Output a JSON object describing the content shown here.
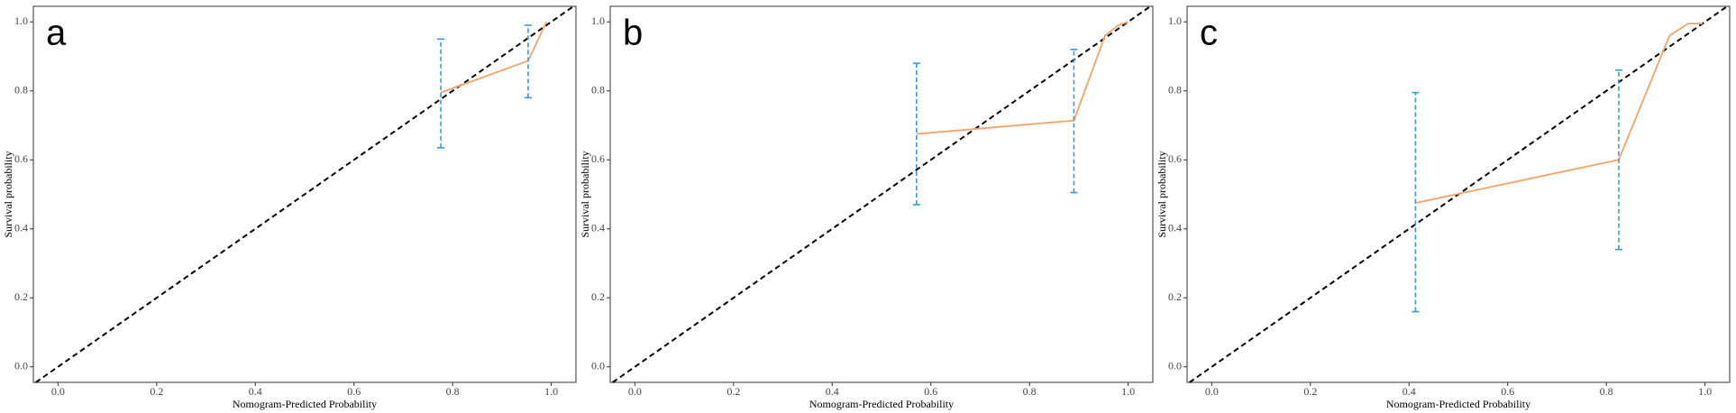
{
  "chart_data": [
    {
      "type": "line",
      "panel": "a",
      "xlabel": "Nomogram-Predicted Probability",
      "ylabel": "Survival probability",
      "xlim": [
        -0.05,
        1.05
      ],
      "ylim": [
        -0.045,
        1.045
      ],
      "xticks": [
        {
          "value": 0,
          "label": "0.0"
        },
        {
          "value": 0.2,
          "label": "0.2"
        },
        {
          "value": 0.4,
          "label": "0.4"
        },
        {
          "value": 0.6,
          "label": "0.6"
        },
        {
          "value": 0.8,
          "label": "0.8"
        },
        {
          "value": 1,
          "label": "1.0"
        }
      ],
      "yticks": [
        {
          "value": 0,
          "label": "0.0"
        },
        {
          "value": 0.2,
          "label": "0.2"
        },
        {
          "value": 0.4,
          "label": "0.4"
        },
        {
          "value": 0.6,
          "label": "0.6"
        },
        {
          "value": 0.8,
          "label": "0.8"
        },
        {
          "value": 1,
          "label": "1.0"
        }
      ],
      "x": [
        0.776,
        0.953,
        0.99
      ],
      "values": [
        0.795,
        0.887,
        1.0
      ],
      "color": "#f4a46a",
      "error_bars": {
        "x": [
          0.776,
          0.953
        ],
        "lower": [
          0.635,
          0.78
        ],
        "upper": [
          0.95,
          0.99
        ],
        "color": "#3a9ad9"
      }
    },
    {
      "type": "line",
      "panel": "b",
      "xlabel": "Nomogram-Predicted Probability",
      "ylabel": "Survival probability",
      "xlim": [
        -0.05,
        1.05
      ],
      "ylim": [
        -0.045,
        1.045
      ],
      "xticks": [
        {
          "value": 0,
          "label": "0.0"
        },
        {
          "value": 0.2,
          "label": "0.2"
        },
        {
          "value": 0.4,
          "label": "0.4"
        },
        {
          "value": 0.6,
          "label": "0.6"
        },
        {
          "value": 0.8,
          "label": "0.8"
        },
        {
          "value": 1,
          "label": "1.0"
        }
      ],
      "yticks": [
        {
          "value": 0,
          "label": "0.0"
        },
        {
          "value": 0.2,
          "label": "0.2"
        },
        {
          "value": 0.4,
          "label": "0.4"
        },
        {
          "value": 0.6,
          "label": "0.6"
        },
        {
          "value": 0.8,
          "label": "0.8"
        },
        {
          "value": 1,
          "label": "1.0"
        }
      ],
      "x": [
        0.571,
        0.89,
        0.953,
        0.98,
        1.0
      ],
      "values": [
        0.675,
        0.714,
        0.96,
        0.99,
        1.0
      ],
      "color": "#f4a46a",
      "error_bars": {
        "x": [
          0.571,
          0.89
        ],
        "lower": [
          0.47,
          0.505
        ],
        "upper": [
          0.88,
          0.92
        ],
        "color": "#3a9ad9"
      }
    },
    {
      "type": "line",
      "panel": "c",
      "xlabel": "Nomogram-Predicted Probability",
      "ylabel": "Survival probability",
      "xlim": [
        -0.05,
        1.05
      ],
      "ylim": [
        -0.045,
        1.045
      ],
      "xticks": [
        {
          "value": 0,
          "label": "0.0"
        },
        {
          "value": 0.2,
          "label": "0.2"
        },
        {
          "value": 0.4,
          "label": "0.4"
        },
        {
          "value": 0.6,
          "label": "0.6"
        },
        {
          "value": 0.8,
          "label": "0.8"
        },
        {
          "value": 1,
          "label": "1.0"
        }
      ],
      "yticks": [
        {
          "value": 0,
          "label": "0.0"
        },
        {
          "value": 0.2,
          "label": "0.2"
        },
        {
          "value": 0.4,
          "label": "0.4"
        },
        {
          "value": 0.6,
          "label": "0.6"
        },
        {
          "value": 0.8,
          "label": "0.8"
        },
        {
          "value": 1,
          "label": "1.0"
        }
      ],
      "x": [
        0.413,
        0.825,
        0.928,
        0.966,
        0.995
      ],
      "values": [
        0.475,
        0.6,
        0.96,
        0.995,
        0.995
      ],
      "color": "#f4a46a",
      "error_bars": {
        "x": [
          0.413,
          0.825
        ],
        "lower": [
          0.16,
          0.34
        ],
        "upper": [
          0.795,
          0.86
        ],
        "color": "#3a9ad9"
      }
    }
  ]
}
